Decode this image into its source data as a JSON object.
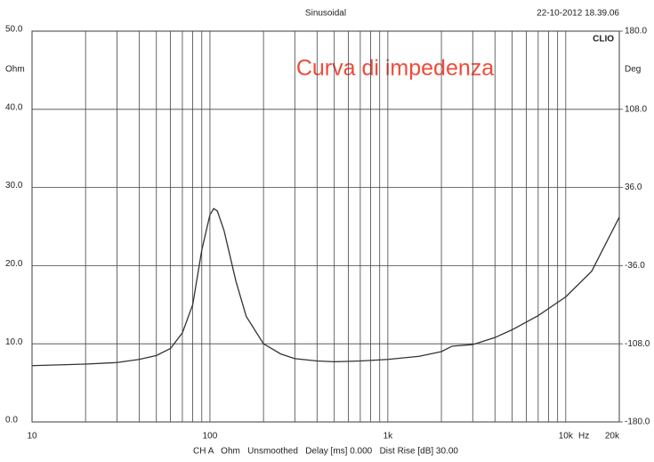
{
  "chart_data": {
    "type": "line",
    "title": "Curva di impedenza",
    "mode": "Sinusoidal",
    "timestamp": "22-10-2012 18.39.06",
    "brand": "CLIO",
    "ylabel": "Ohm",
    "y2label": "Deg",
    "xunit": "Hz",
    "footer": "CH A   Ohm   Unsmoothed   Delay [ms] 0.000   Dist Rise [dB] 30.00",
    "log_x": true,
    "grid": true,
    "xlim": [
      10,
      20000
    ],
    "xticks": [
      {
        "value": 10,
        "label": "10"
      },
      {
        "value": 100,
        "label": "100"
      },
      {
        "value": 1000,
        "label": "1k"
      },
      {
        "value": 10000,
        "label": "10k"
      },
      {
        "value": 20000,
        "label": "20k"
      }
    ],
    "xminor": [
      20,
      30,
      40,
      50,
      60,
      70,
      80,
      90,
      200,
      300,
      400,
      500,
      600,
      700,
      800,
      900,
      2000,
      3000,
      4000,
      5000,
      6000,
      7000,
      8000,
      9000
    ],
    "ylim": [
      0,
      50
    ],
    "yticks": [
      {
        "value": 0,
        "label": "0.0"
      },
      {
        "value": 10,
        "label": "10.0"
      },
      {
        "value": 20,
        "label": "20.0"
      },
      {
        "value": 30,
        "label": "30.0"
      },
      {
        "value": 40,
        "label": "40.0"
      },
      {
        "value": 50,
        "label": "50.0"
      }
    ],
    "y2lim": [
      -180,
      180
    ],
    "y2ticks": [
      {
        "value": -180,
        "label": "-180.0"
      },
      {
        "value": -108,
        "label": "-108.0"
      },
      {
        "value": -36,
        "label": "-36.0"
      },
      {
        "value": 36,
        "label": "36.0"
      },
      {
        "value": 108,
        "label": "108.0"
      },
      {
        "value": 180,
        "label": "180.0"
      }
    ],
    "x": [
      10,
      20,
      30,
      40,
      50,
      60,
      70,
      80,
      90,
      100,
      105,
      110,
      120,
      140,
      160,
      200,
      250,
      300,
      400,
      500,
      700,
      1000,
      1500,
      2000,
      2300,
      3000,
      4000,
      5000,
      7000,
      10000,
      14000,
      20000
    ],
    "series": [
      {
        "color": "#333333",
        "values": [
          7.2,
          7.4,
          7.6,
          8.0,
          8.5,
          9.4,
          11.4,
          15,
          22,
          26.5,
          27.3,
          27,
          24.5,
          18,
          13.5,
          10,
          8.7,
          8.1,
          7.8,
          7.7,
          7.8,
          8.0,
          8.4,
          9.0,
          9.7,
          9.9,
          10.8,
          11.8,
          13.6,
          16.0,
          19.3,
          26.2
        ]
      }
    ]
  }
}
